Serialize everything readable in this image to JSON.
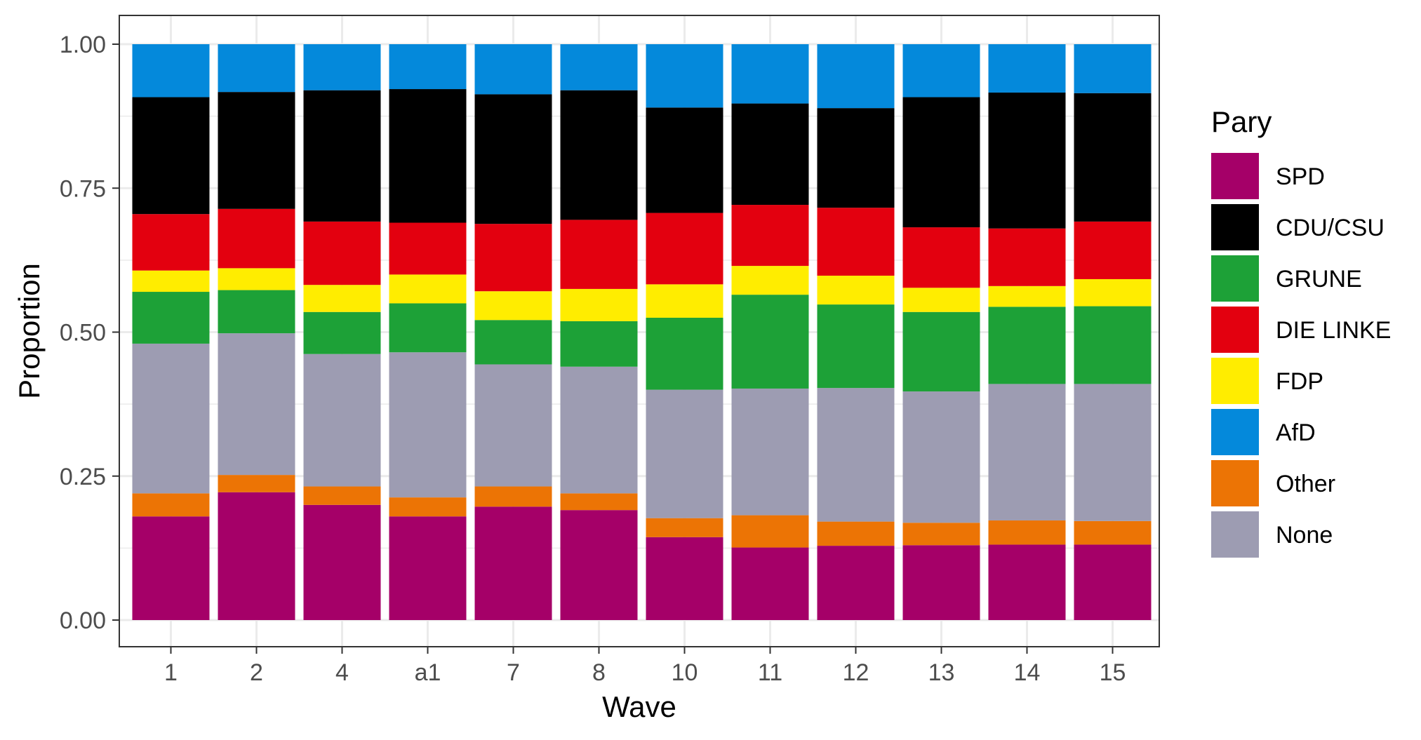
{
  "chart_data": {
    "type": "bar",
    "stacked": true,
    "categories": [
      "1",
      "2",
      "4",
      "a1",
      "7",
      "8",
      "10",
      "11",
      "12",
      "13",
      "14",
      "15"
    ],
    "series": [
      {
        "name": "SPD",
        "color": "#A50068",
        "values": [
          0.18,
          0.222,
          0.2,
          0.18,
          0.197,
          0.191,
          0.144,
          0.126,
          0.129,
          0.13,
          0.131,
          0.131
        ]
      },
      {
        "name": "Other",
        "color": "#EC7405",
        "values": [
          0.04,
          0.03,
          0.032,
          0.033,
          0.035,
          0.029,
          0.033,
          0.056,
          0.042,
          0.039,
          0.042,
          0.041
        ]
      },
      {
        "name": "None",
        "color": "#9D9CB2",
        "values": [
          0.26,
          0.246,
          0.23,
          0.252,
          0.212,
          0.22,
          0.223,
          0.22,
          0.232,
          0.228,
          0.237,
          0.238
        ]
      },
      {
        "name": "GRUNE",
        "color": "#1DA137",
        "values": [
          0.09,
          0.075,
          0.073,
          0.085,
          0.077,
          0.079,
          0.125,
          0.163,
          0.145,
          0.138,
          0.134,
          0.135
        ]
      },
      {
        "name": "FDP",
        "color": "#FFED00",
        "values": [
          0.037,
          0.038,
          0.047,
          0.05,
          0.05,
          0.056,
          0.058,
          0.05,
          0.05,
          0.042,
          0.036,
          0.047
        ]
      },
      {
        "name": "DIE LINKE",
        "color": "#E3000F",
        "values": [
          0.098,
          0.103,
          0.11,
          0.09,
          0.117,
          0.12,
          0.124,
          0.106,
          0.118,
          0.105,
          0.1,
          0.1
        ]
      },
      {
        "name": "CDU/CSU",
        "color": "#000000",
        "values": [
          0.203,
          0.203,
          0.228,
          0.232,
          0.225,
          0.225,
          0.183,
          0.176,
          0.173,
          0.226,
          0.236,
          0.223
        ]
      },
      {
        "name": "AfD",
        "color": "#0489DB",
        "values": [
          0.092,
          0.083,
          0.08,
          0.078,
          0.087,
          0.08,
          0.11,
          0.103,
          0.111,
          0.092,
          0.084,
          0.085
        ]
      }
    ],
    "legend_order": [
      "SPD",
      "CDU/CSU",
      "GRUNE",
      "DIE LINKE",
      "FDP",
      "AfD",
      "Other",
      "None"
    ],
    "title": "",
    "xlabel": "Wave",
    "ylabel": "Proportion",
    "legend_title": "Pary",
    "ylim": [
      0,
      1
    ],
    "yticks": [
      "0.00",
      "0.25",
      "0.50",
      "0.75",
      "1.00"
    ],
    "grid": true,
    "legend_position": "right"
  }
}
